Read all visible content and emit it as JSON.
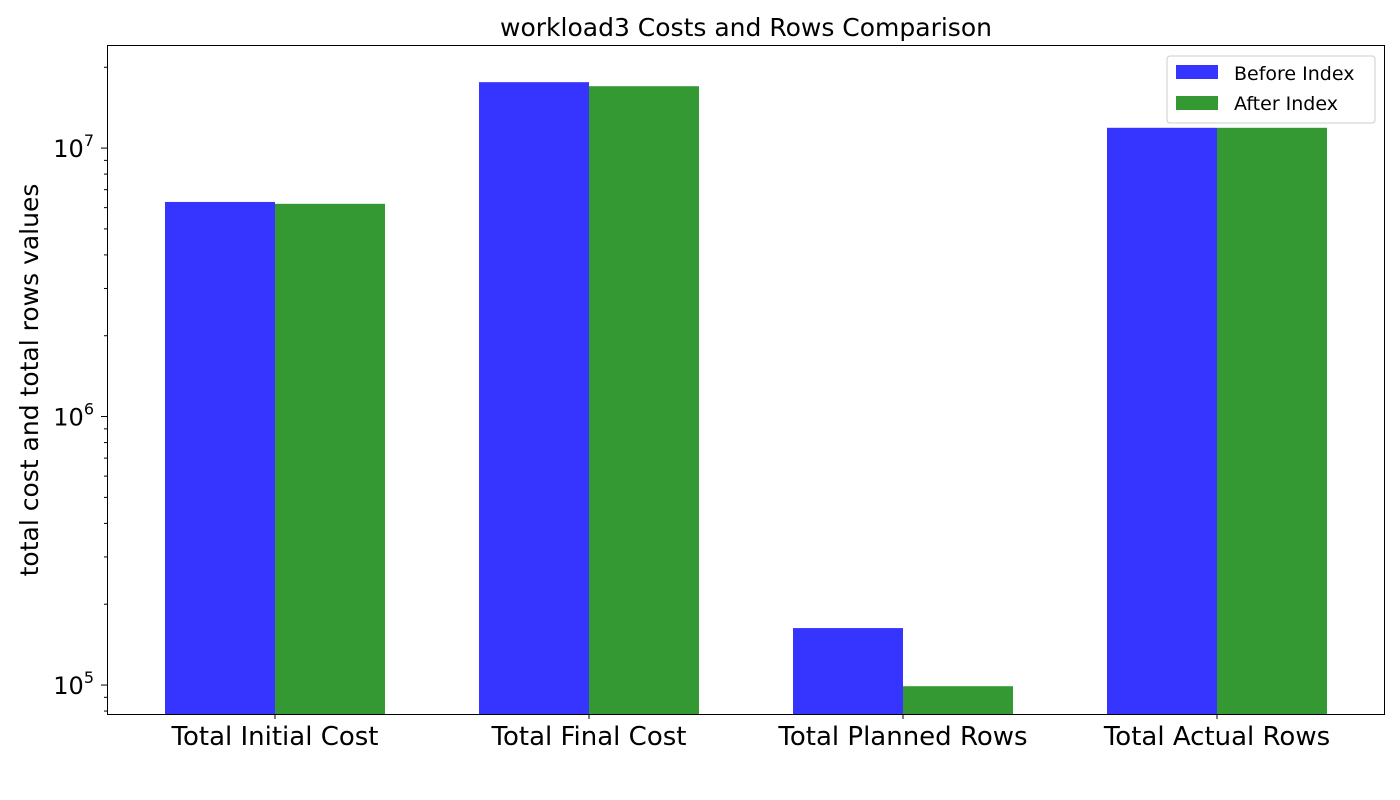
{
  "chart_data": {
    "type": "bar",
    "title": "workload3 Costs and Rows Comparison",
    "xlabel": "",
    "ylabel": "total cost and total rows values",
    "yscale": "log",
    "ylim": [
      78000,
      24000000
    ],
    "yticks": [
      {
        "value": 100000,
        "base": "10",
        "exp": "5"
      },
      {
        "value": 1000000,
        "base": "10",
        "exp": "6"
      },
      {
        "value": 10000000,
        "base": "10",
        "exp": "7"
      }
    ],
    "categories": [
      "Total Initial Cost",
      "Total Final Cost",
      "Total Planned Rows",
      "Total Actual Rows"
    ],
    "series": [
      {
        "name": "Before Index",
        "color": "#3535ff",
        "values": [
          6300000,
          17600000,
          163000,
          11900000
        ]
      },
      {
        "name": "After Index",
        "color": "#359933",
        "values": [
          6200000,
          17000000,
          99000,
          11900000
        ]
      }
    ],
    "legend_position": "top-right",
    "grid": false
  }
}
